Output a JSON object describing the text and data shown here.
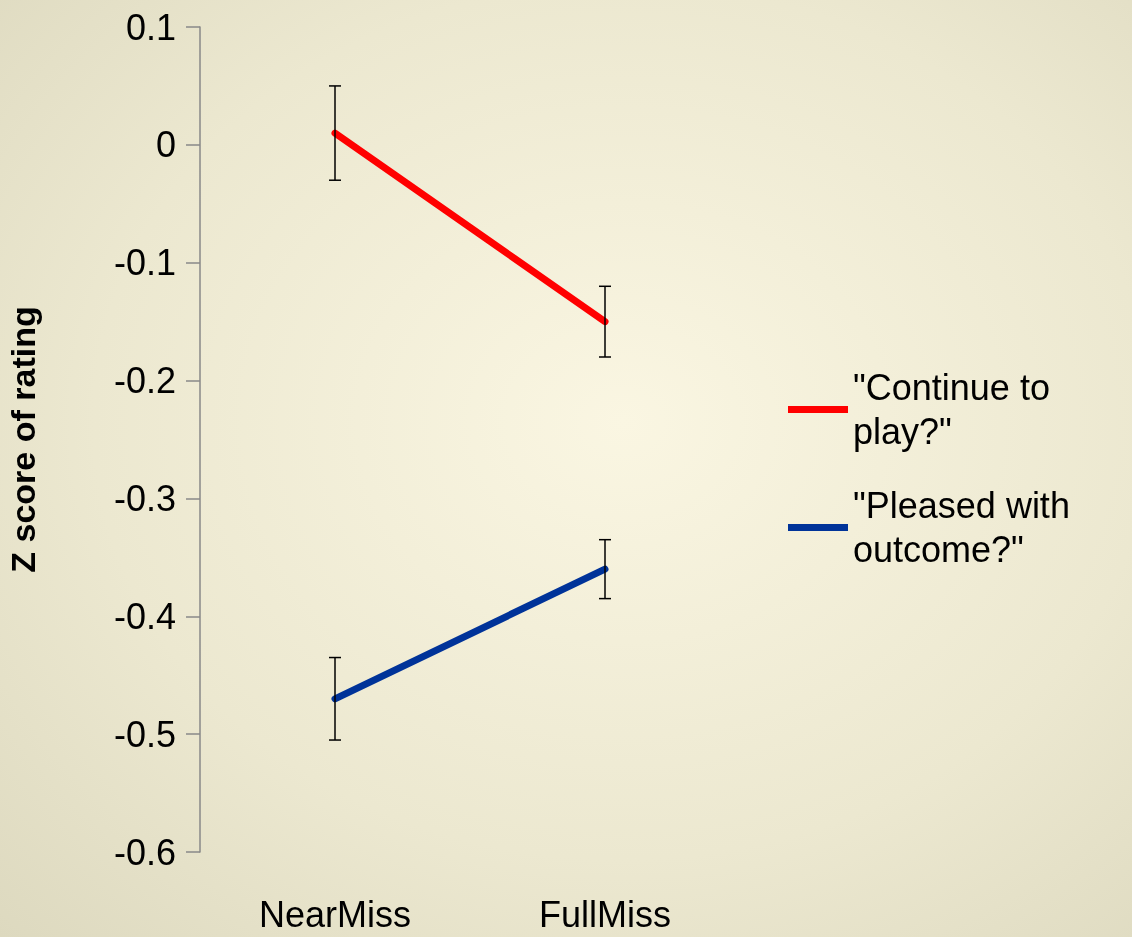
{
  "chart_data": {
    "type": "line",
    "ylabel": "Z score of rating",
    "categories": [
      "NearMiss",
      "FullMiss"
    ],
    "series": [
      {
        "name": "\"Continue to play?\"",
        "color": "#ff0000",
        "values": [
          0.01,
          -0.15
        ],
        "errors": [
          0.04,
          0.03
        ]
      },
      {
        "name": "\"Pleased with outcome?\"",
        "color": "#003399",
        "values": [
          -0.47,
          -0.36
        ],
        "errors": [
          0.035,
          0.025
        ]
      }
    ],
    "ylim": [
      -0.6,
      0.1
    ],
    "yticks": [
      -0.6,
      -0.5,
      -0.4,
      -0.3,
      -0.2,
      -0.1,
      0,
      0.1
    ],
    "grid": false,
    "legend": "right",
    "marker": "none",
    "line_style": "solid"
  }
}
